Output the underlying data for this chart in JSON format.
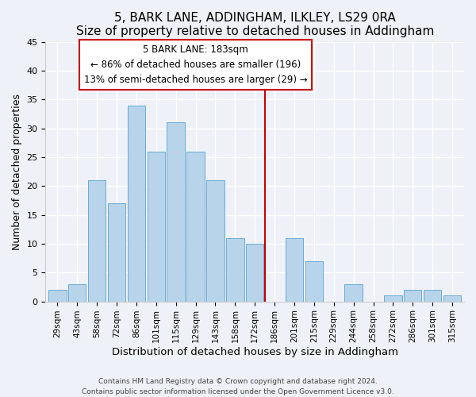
{
  "title": "5, BARK LANE, ADDINGHAM, ILKLEY, LS29 0RA",
  "subtitle": "Size of property relative to detached houses in Addingham",
  "xlabel": "Distribution of detached houses by size in Addingham",
  "ylabel": "Number of detached properties",
  "bar_labels": [
    "29sqm",
    "43sqm",
    "58sqm",
    "72sqm",
    "86sqm",
    "101sqm",
    "115sqm",
    "129sqm",
    "143sqm",
    "158sqm",
    "172sqm",
    "186sqm",
    "201sqm",
    "215sqm",
    "229sqm",
    "244sqm",
    "258sqm",
    "272sqm",
    "286sqm",
    "301sqm",
    "315sqm"
  ],
  "bar_values": [
    2,
    3,
    21,
    17,
    34,
    26,
    31,
    26,
    21,
    11,
    10,
    0,
    11,
    7,
    0,
    3,
    0,
    1,
    2,
    2,
    1
  ],
  "bar_color": "#b8d4ea",
  "bar_edge_color": "#6aaad4",
  "vline_color": "#cc0000",
  "annotation_title": "5 BARK LANE: 183sqm",
  "annotation_line1": "← 86% of detached houses are smaller (196)",
  "annotation_line2": "13% of semi-detached houses are larger (29) →",
  "ylim": [
    0,
    45
  ],
  "yticks": [
    0,
    5,
    10,
    15,
    20,
    25,
    30,
    35,
    40,
    45
  ],
  "footer_line1": "Contains HM Land Registry data © Crown copyright and database right 2024.",
  "footer_line2": "Contains public sector information licensed under the Open Government Licence v3.0.",
  "bg_color": "#eef2f8"
}
